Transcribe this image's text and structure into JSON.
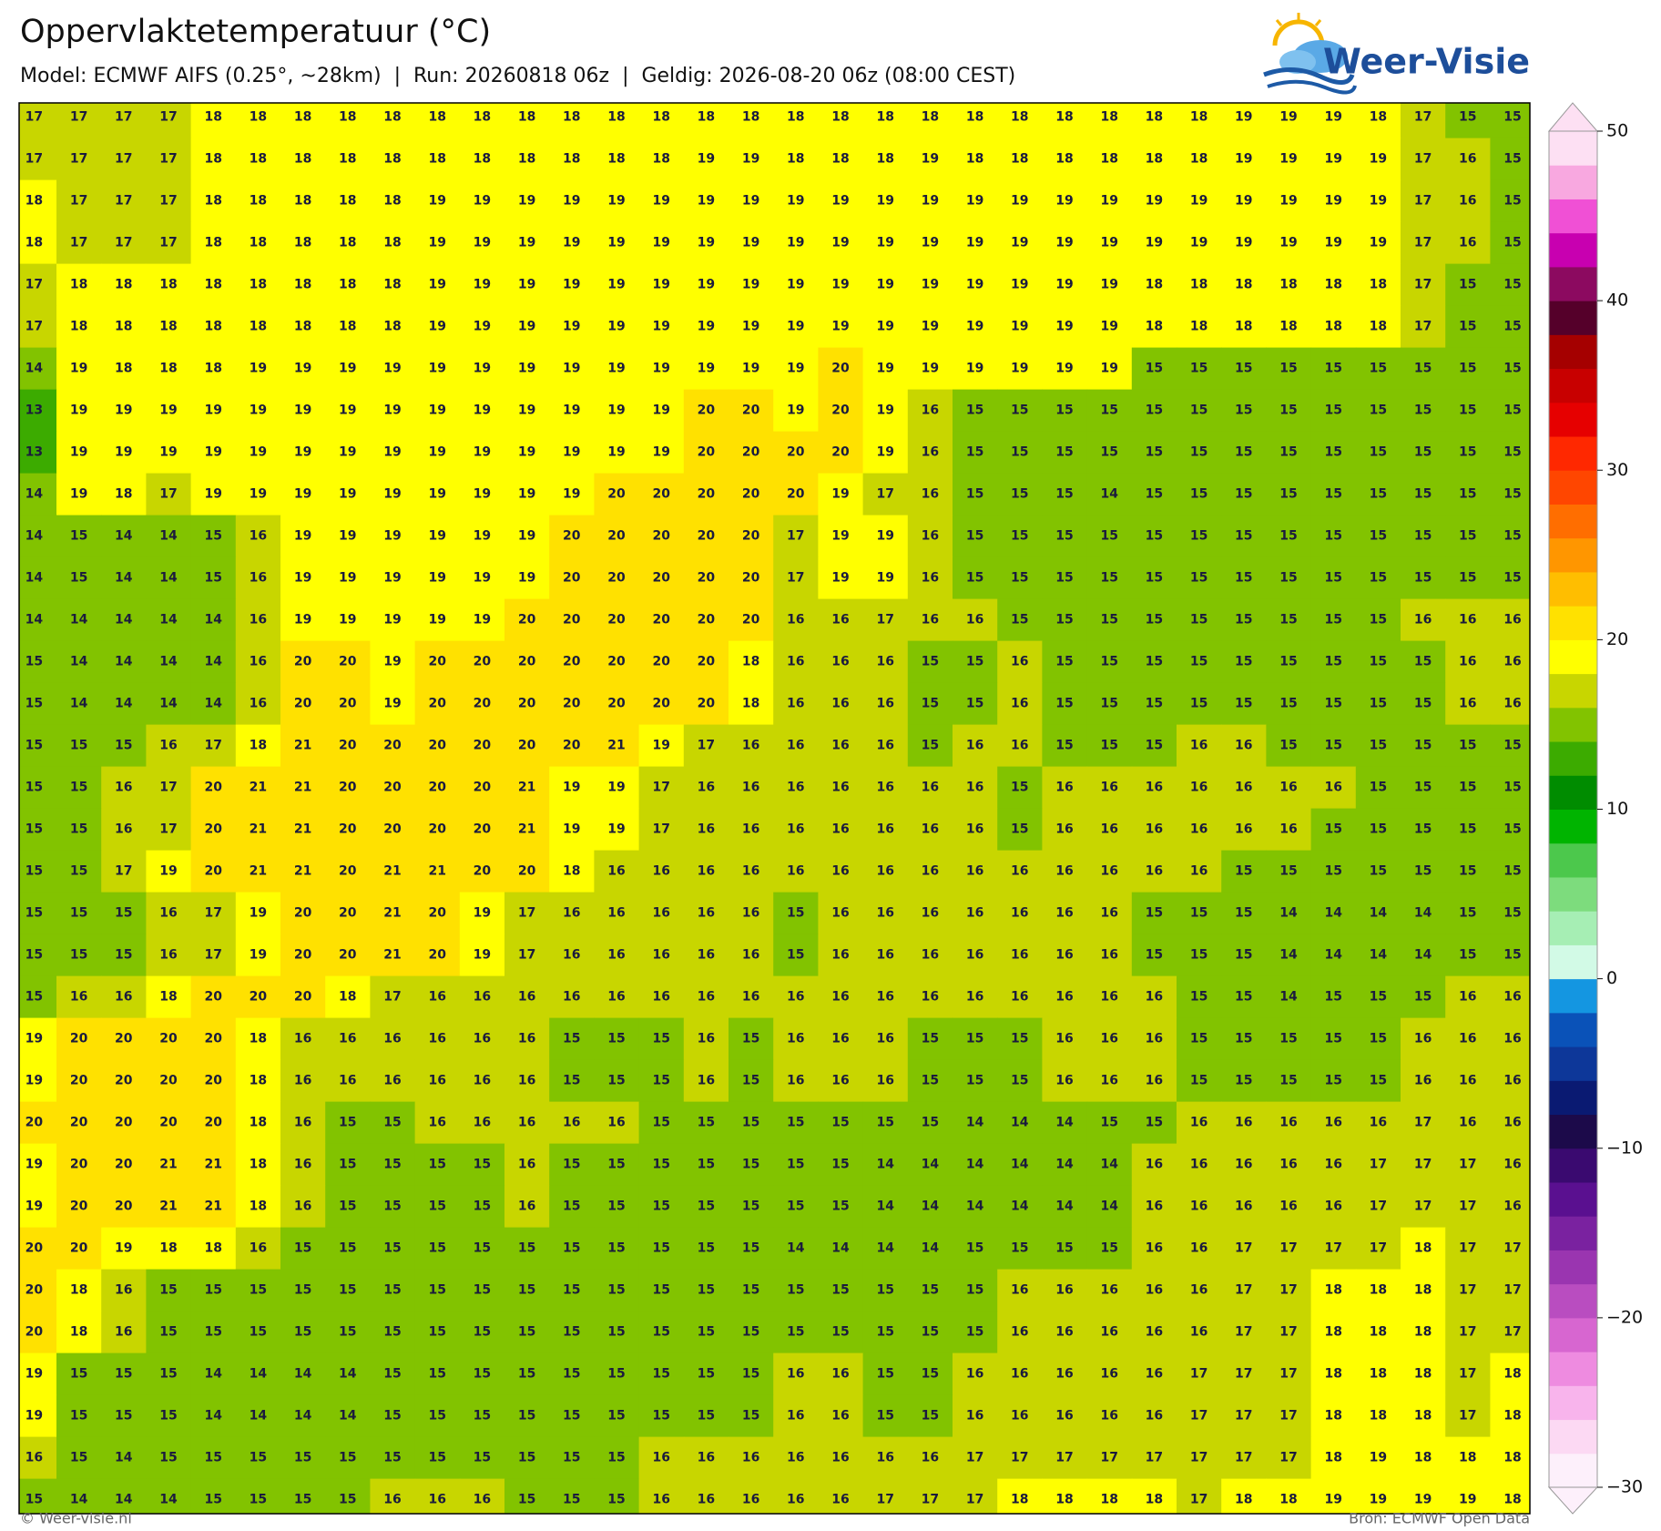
{
  "header": {
    "title": "Oppervlaktetemperatuur (°C)",
    "subtitle": "Model: ECMWF AIFS (0.25°, ~28km)  |  Run: 20260818 06z  |  Geldig: 2026-08-20 06z (08:00 CEST)"
  },
  "logo": "Weer-Visie",
  "chart_data": {
    "type": "heatmap",
    "values": [
      [
        17,
        17,
        17,
        17,
        18,
        18,
        18,
        18,
        18,
        18,
        18,
        18,
        18,
        18,
        18,
        18,
        18,
        18,
        18,
        18,
        18,
        18,
        18,
        18,
        18,
        18,
        18,
        19,
        19,
        19,
        18,
        17,
        15,
        15
      ],
      [
        17,
        17,
        17,
        17,
        18,
        18,
        18,
        18,
        18,
        18,
        18,
        18,
        18,
        18,
        18,
        19,
        19,
        18,
        18,
        18,
        19,
        18,
        18,
        18,
        18,
        18,
        18,
        19,
        19,
        19,
        19,
        17,
        16,
        15
      ],
      [
        18,
        17,
        17,
        17,
        18,
        18,
        18,
        18,
        18,
        19,
        19,
        19,
        19,
        19,
        19,
        19,
        19,
        19,
        19,
        19,
        19,
        19,
        19,
        19,
        19,
        19,
        19,
        19,
        19,
        19,
        19,
        17,
        16,
        15
      ],
      [
        18,
        17,
        17,
        17,
        18,
        18,
        18,
        18,
        18,
        19,
        19,
        19,
        19,
        19,
        19,
        19,
        19,
        19,
        19,
        19,
        19,
        19,
        19,
        19,
        19,
        19,
        19,
        19,
        19,
        19,
        19,
        17,
        16,
        15
      ],
      [
        17,
        18,
        18,
        18,
        18,
        18,
        18,
        18,
        18,
        19,
        19,
        19,
        19,
        19,
        19,
        19,
        19,
        19,
        19,
        19,
        19,
        19,
        19,
        19,
        19,
        18,
        18,
        18,
        18,
        18,
        18,
        17,
        15,
        15
      ],
      [
        17,
        18,
        18,
        18,
        18,
        18,
        18,
        18,
        18,
        19,
        19,
        19,
        19,
        19,
        19,
        19,
        19,
        19,
        19,
        19,
        19,
        19,
        19,
        19,
        19,
        18,
        18,
        18,
        18,
        18,
        18,
        17,
        15,
        15
      ],
      [
        14,
        19,
        18,
        18,
        18,
        19,
        19,
        19,
        19,
        19,
        19,
        19,
        19,
        19,
        19,
        19,
        19,
        19,
        20,
        19,
        19,
        19,
        19,
        19,
        19,
        15,
        15,
        15,
        15,
        15,
        15,
        15,
        15,
        15
      ],
      [
        13,
        19,
        19,
        19,
        19,
        19,
        19,
        19,
        19,
        19,
        19,
        19,
        19,
        19,
        19,
        20,
        20,
        19,
        20,
        19,
        16,
        15,
        15,
        15,
        15,
        15,
        15,
        15,
        15,
        15,
        15,
        15,
        15,
        15
      ],
      [
        13,
        19,
        19,
        19,
        19,
        19,
        19,
        19,
        19,
        19,
        19,
        19,
        19,
        19,
        19,
        20,
        20,
        20,
        20,
        19,
        16,
        15,
        15,
        15,
        15,
        15,
        15,
        15,
        15,
        15,
        15,
        15,
        15,
        15
      ],
      [
        14,
        19,
        18,
        17,
        19,
        19,
        19,
        19,
        19,
        19,
        19,
        19,
        19,
        20,
        20,
        20,
        20,
        20,
        19,
        17,
        16,
        15,
        15,
        15,
        14,
        15,
        15,
        15,
        15,
        15,
        15,
        15,
        15,
        15
      ],
      [
        14,
        15,
        14,
        14,
        15,
        16,
        19,
        19,
        19,
        19,
        19,
        19,
        20,
        20,
        20,
        20,
        20,
        17,
        19,
        19,
        16,
        15,
        15,
        15,
        15,
        15,
        15,
        15,
        15,
        15,
        15,
        15,
        15,
        15
      ],
      [
        14,
        15,
        14,
        14,
        15,
        16,
        19,
        19,
        19,
        19,
        19,
        19,
        20,
        20,
        20,
        20,
        20,
        17,
        19,
        19,
        16,
        15,
        15,
        15,
        15,
        15,
        15,
        15,
        15,
        15,
        15,
        15,
        15,
        15
      ],
      [
        14,
        14,
        14,
        14,
        14,
        16,
        19,
        19,
        19,
        19,
        19,
        20,
        20,
        20,
        20,
        20,
        20,
        16,
        16,
        17,
        16,
        16,
        15,
        15,
        15,
        15,
        15,
        15,
        15,
        15,
        15,
        16,
        16,
        16
      ],
      [
        15,
        14,
        14,
        14,
        14,
        16,
        20,
        20,
        19,
        20,
        20,
        20,
        20,
        20,
        20,
        20,
        18,
        16,
        16,
        16,
        15,
        15,
        16,
        15,
        15,
        15,
        15,
        15,
        15,
        15,
        15,
        15,
        16,
        16
      ],
      [
        15,
        14,
        14,
        14,
        14,
        16,
        20,
        20,
        19,
        20,
        20,
        20,
        20,
        20,
        20,
        20,
        18,
        16,
        16,
        16,
        15,
        15,
        16,
        15,
        15,
        15,
        15,
        15,
        15,
        15,
        15,
        15,
        16,
        16
      ],
      [
        15,
        15,
        15,
        16,
        17,
        18,
        21,
        20,
        20,
        20,
        20,
        20,
        20,
        21,
        19,
        17,
        16,
        16,
        16,
        16,
        15,
        16,
        16,
        15,
        15,
        15,
        16,
        16,
        15,
        15,
        15,
        15,
        15,
        15
      ],
      [
        15,
        15,
        16,
        17,
        20,
        21,
        21,
        20,
        20,
        20,
        20,
        21,
        19,
        19,
        17,
        16,
        16,
        16,
        16,
        16,
        16,
        16,
        15,
        16,
        16,
        16,
        16,
        16,
        16,
        16,
        15,
        15,
        15,
        15
      ],
      [
        15,
        15,
        16,
        17,
        20,
        21,
        21,
        20,
        20,
        20,
        20,
        21,
        19,
        19,
        17,
        16,
        16,
        16,
        16,
        16,
        16,
        16,
        15,
        16,
        16,
        16,
        16,
        16,
        16,
        15,
        15,
        15,
        15,
        15
      ],
      [
        15,
        15,
        17,
        19,
        20,
        21,
        21,
        20,
        21,
        21,
        20,
        20,
        18,
        16,
        16,
        16,
        16,
        16,
        16,
        16,
        16,
        16,
        16,
        16,
        16,
        16,
        16,
        15,
        15,
        15,
        15,
        15,
        15,
        15
      ],
      [
        15,
        15,
        15,
        16,
        17,
        19,
        20,
        20,
        21,
        20,
        19,
        17,
        16,
        16,
        16,
        16,
        16,
        15,
        16,
        16,
        16,
        16,
        16,
        16,
        16,
        15,
        15,
        15,
        14,
        14,
        14,
        14,
        15,
        15
      ],
      [
        15,
        15,
        15,
        16,
        17,
        19,
        20,
        20,
        21,
        20,
        19,
        17,
        16,
        16,
        16,
        16,
        16,
        15,
        16,
        16,
        16,
        16,
        16,
        16,
        16,
        15,
        15,
        15,
        14,
        14,
        14,
        14,
        15,
        15
      ],
      [
        15,
        16,
        16,
        18,
        20,
        20,
        20,
        18,
        17,
        16,
        16,
        16,
        16,
        16,
        16,
        16,
        16,
        16,
        16,
        16,
        16,
        16,
        16,
        16,
        16,
        16,
        15,
        15,
        14,
        15,
        15,
        15,
        16,
        16
      ],
      [
        19,
        20,
        20,
        20,
        20,
        18,
        16,
        16,
        16,
        16,
        16,
        16,
        15,
        15,
        15,
        16,
        15,
        16,
        16,
        16,
        15,
        15,
        15,
        16,
        16,
        16,
        15,
        15,
        15,
        15,
        15,
        16,
        16,
        16
      ],
      [
        19,
        20,
        20,
        20,
        20,
        18,
        16,
        16,
        16,
        16,
        16,
        16,
        15,
        15,
        15,
        16,
        15,
        16,
        16,
        16,
        15,
        15,
        15,
        16,
        16,
        16,
        15,
        15,
        15,
        15,
        15,
        16,
        16,
        16
      ],
      [
        20,
        20,
        20,
        20,
        20,
        18,
        16,
        15,
        15,
        16,
        16,
        16,
        16,
        16,
        15,
        15,
        15,
        15,
        15,
        15,
        15,
        14,
        14,
        14,
        15,
        15,
        16,
        16,
        16,
        16,
        16,
        17,
        16,
        16
      ],
      [
        19,
        20,
        20,
        21,
        21,
        18,
        16,
        15,
        15,
        15,
        15,
        16,
        15,
        15,
        15,
        15,
        15,
        15,
        15,
        14,
        14,
        14,
        14,
        14,
        14,
        16,
        16,
        16,
        16,
        16,
        17,
        17,
        17,
        16
      ],
      [
        19,
        20,
        20,
        21,
        21,
        18,
        16,
        15,
        15,
        15,
        15,
        16,
        15,
        15,
        15,
        15,
        15,
        15,
        15,
        14,
        14,
        14,
        14,
        14,
        14,
        16,
        16,
        16,
        16,
        16,
        17,
        17,
        17,
        16
      ],
      [
        20,
        20,
        19,
        18,
        18,
        16,
        15,
        15,
        15,
        15,
        15,
        15,
        15,
        15,
        15,
        15,
        15,
        14,
        14,
        14,
        14,
        15,
        15,
        15,
        15,
        16,
        16,
        17,
        17,
        17,
        17,
        18,
        17,
        17
      ],
      [
        20,
        18,
        16,
        15,
        15,
        15,
        15,
        15,
        15,
        15,
        15,
        15,
        15,
        15,
        15,
        15,
        15,
        15,
        15,
        15,
        15,
        15,
        16,
        16,
        16,
        16,
        16,
        17,
        17,
        18,
        18,
        18,
        17,
        17
      ],
      [
        20,
        18,
        16,
        15,
        15,
        15,
        15,
        15,
        15,
        15,
        15,
        15,
        15,
        15,
        15,
        15,
        15,
        15,
        15,
        15,
        15,
        15,
        16,
        16,
        16,
        16,
        16,
        17,
        17,
        18,
        18,
        18,
        17,
        17
      ],
      [
        19,
        15,
        15,
        15,
        14,
        14,
        14,
        14,
        15,
        15,
        15,
        15,
        15,
        15,
        15,
        15,
        15,
        16,
        16,
        15,
        15,
        16,
        16,
        16,
        16,
        16,
        17,
        17,
        17,
        18,
        18,
        18,
        17,
        18
      ],
      [
        19,
        15,
        15,
        15,
        14,
        14,
        14,
        14,
        15,
        15,
        15,
        15,
        15,
        15,
        15,
        15,
        15,
        16,
        16,
        15,
        15,
        16,
        16,
        16,
        16,
        16,
        17,
        17,
        17,
        18,
        18,
        18,
        17,
        18
      ],
      [
        16,
        15,
        14,
        15,
        15,
        15,
        15,
        15,
        15,
        15,
        15,
        15,
        15,
        15,
        16,
        16,
        16,
        16,
        16,
        16,
        16,
        17,
        17,
        17,
        17,
        17,
        17,
        17,
        17,
        18,
        19,
        18,
        18,
        18
      ],
      [
        15,
        14,
        14,
        14,
        15,
        15,
        15,
        15,
        16,
        16,
        16,
        15,
        15,
        15,
        16,
        16,
        16,
        16,
        16,
        17,
        17,
        17,
        18,
        18,
        18,
        18,
        17,
        18,
        18,
        19,
        19,
        19,
        19,
        18
      ]
    ],
    "colorbar": {
      "lim": [
        -30,
        50
      ],
      "ticks": [
        {
          "value": -30,
          "label": "−30"
        },
        {
          "value": -20,
          "label": "−20"
        },
        {
          "value": -10,
          "label": "−10"
        },
        0,
        10,
        20,
        30,
        40,
        50
      ],
      "colors": [
        "#fdf0fb",
        "#fcd9f3",
        "#f8b4ec",
        "#ee8be0",
        "#d766d0",
        "#b94dc0",
        "#9a35b0",
        "#7a22a0",
        "#5a1090",
        "#3a0a70",
        "#1c0a4a",
        "#0a1a72",
        "#0d3799",
        "#0a52b8",
        "#1496e1",
        "#d2fae6",
        "#a6eeb4",
        "#7ddc7d",
        "#4cc84c",
        "#00b400",
        "#008c00",
        "#3cab00",
        "#82c300",
        "#c8d600",
        "#ffff00",
        "#ffe100",
        "#ffbe00",
        "#ff9600",
        "#ff6e00",
        "#ff4600",
        "#ff2800",
        "#e60000",
        "#c80000",
        "#a50000",
        "#55002a",
        "#8c0a60",
        "#c800b0",
        "#f050d5",
        "#f8a8e0",
        "#fde0f3"
      ]
    }
  },
  "footer": {
    "left": "© Weer-visie.nl",
    "right": "Bron: ECMWF Open Data"
  }
}
